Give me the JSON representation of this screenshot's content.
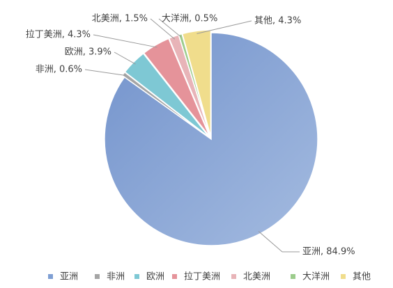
{
  "chart_data": {
    "type": "pie",
    "categories": [
      "亚洲",
      "非洲",
      "欧洲",
      "拉丁美洲",
      "北美洲",
      "大洋洲",
      "其他"
    ],
    "values": [
      84.9,
      0.6,
      3.9,
      4.3,
      1.5,
      0.5,
      4.3
    ],
    "value_labels": [
      "亚洲, 84.9%",
      "非洲, 0.6%",
      "欧洲, 3.9%",
      "拉丁美洲, 4.3%",
      "北美洲, 1.5%",
      "大洋洲, 0.5%",
      "其他, 4.3%"
    ],
    "colors": [
      "#7f9fd3",
      "#a5a5a5",
      "#7ec8d4",
      "#e5939a",
      "#e8b4b8",
      "#9ccc8c",
      "#f0dd8c"
    ],
    "legend": "bottom"
  }
}
